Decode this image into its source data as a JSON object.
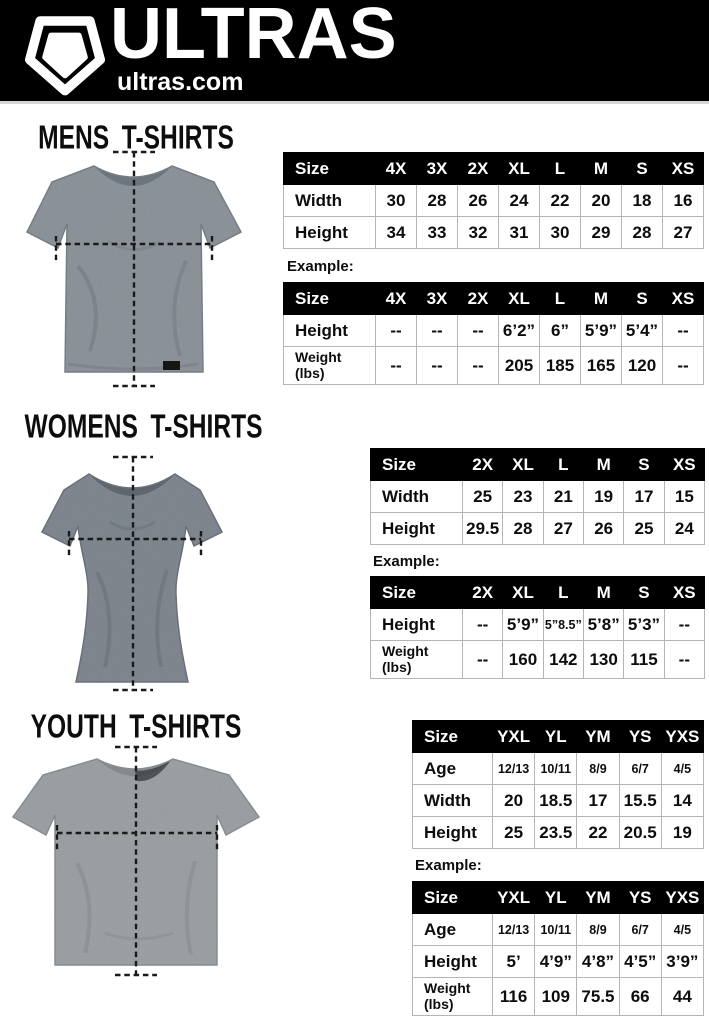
{
  "header": {
    "brand": "ULTRAS",
    "site": "ultras.com",
    "logo_icon": "pentagon-shield-icon",
    "background_color": "#000000"
  },
  "colors": {
    "table_header_bg": "#000000",
    "table_header_text": "#ffffff",
    "table_border": "#b5b5b5",
    "mens_shirt": "#878e95",
    "womens_shirt": "#79818a",
    "youth_shirt": "#969c9f",
    "measure_line": "#1a1a1a"
  },
  "sections": [
    {
      "id": "mens",
      "title": "MENS T-SHIRTS",
      "shirt_image": "mens-gray-heather-tee-with-measurement-lines",
      "size_table": {
        "columns": [
          "Size",
          "4X",
          "3X",
          "2X",
          "XL",
          "L",
          "M",
          "S",
          "XS"
        ],
        "rows": [
          {
            "label": "Width",
            "values": [
              "30",
              "28",
              "26",
              "24",
              "22",
              "20",
              "18",
              "16"
            ]
          },
          {
            "label": "Height",
            "values": [
              "34",
              "33",
              "32",
              "31",
              "30",
              "29",
              "28",
              "27"
            ]
          }
        ]
      },
      "example_label": "Example:",
      "example_table": {
        "columns": [
          "Size",
          "4X",
          "3X",
          "2X",
          "XL",
          "L",
          "M",
          "S",
          "XS"
        ],
        "rows": [
          {
            "label": "Height",
            "values": [
              "--",
              "--",
              "--",
              "6’2”",
              "6”",
              "5’9”",
              "5’4”",
              "--"
            ]
          },
          {
            "label": [
              "Weight",
              "(lbs)"
            ],
            "values": [
              "--",
              "--",
              "--",
              "205",
              "185",
              "165",
              "120",
              "--"
            ]
          }
        ]
      }
    },
    {
      "id": "womens",
      "title": "WOMENS T-SHIRTS",
      "shirt_image": "womens-fitted-gray-heather-tee-with-measurement-lines",
      "size_table": {
        "columns": [
          "Size",
          "2X",
          "XL",
          "L",
          "M",
          "S",
          "XS"
        ],
        "rows": [
          {
            "label": "Width",
            "values": [
              "25",
              "23",
              "21",
              "19",
              "17",
              "15"
            ]
          },
          {
            "label": "Height",
            "values": [
              "29.5",
              "28",
              "27",
              "26",
              "25",
              "24"
            ]
          }
        ]
      },
      "example_label": "Example:",
      "example_table": {
        "columns": [
          "Size",
          "2X",
          "XL",
          "L",
          "M",
          "S",
          "XS"
        ],
        "rows": [
          {
            "label": "Height",
            "values": [
              "--",
              "5’9”",
              "5”8.5”",
              "5’8”",
              "5’3”",
              "--"
            ]
          },
          {
            "label": [
              "Weight",
              "(lbs)"
            ],
            "values": [
              "--",
              "160",
              "142",
              "130",
              "115",
              "--"
            ]
          }
        ]
      }
    },
    {
      "id": "youth",
      "title": "YOUTH T-SHIRTS",
      "shirt_image": "youth-gray-heather-tee-with-measurement-lines",
      "size_table": {
        "columns": [
          "Size",
          "YXL",
          "YL",
          "YM",
          "YS",
          "YXS"
        ],
        "rows": [
          {
            "label": "Age",
            "small_values": true,
            "values": [
              "12/13",
              "10/11",
              "8/9",
              "6/7",
              "4/5"
            ]
          },
          {
            "label": "Width",
            "values": [
              "20",
              "18.5",
              "17",
              "15.5",
              "14"
            ]
          },
          {
            "label": "Height",
            "values": [
              "25",
              "23.5",
              "22",
              "20.5",
              "19"
            ]
          }
        ]
      },
      "example_label": "Example:",
      "example_table": {
        "columns": [
          "Size",
          "YXL",
          "YL",
          "YM",
          "YS",
          "YXS"
        ],
        "rows": [
          {
            "label": "Age",
            "small_values": true,
            "values": [
              "12/13",
              "10/11",
              "8/9",
              "6/7",
              "4/5"
            ]
          },
          {
            "label": "Height",
            "values": [
              "5’",
              "4’9”",
              "4’8”",
              "4’5”",
              "3’9”"
            ]
          },
          {
            "label": [
              "Weight",
              "(lbs)"
            ],
            "values": [
              "116",
              "109",
              "75.5",
              "66",
              "44"
            ]
          }
        ]
      }
    }
  ]
}
